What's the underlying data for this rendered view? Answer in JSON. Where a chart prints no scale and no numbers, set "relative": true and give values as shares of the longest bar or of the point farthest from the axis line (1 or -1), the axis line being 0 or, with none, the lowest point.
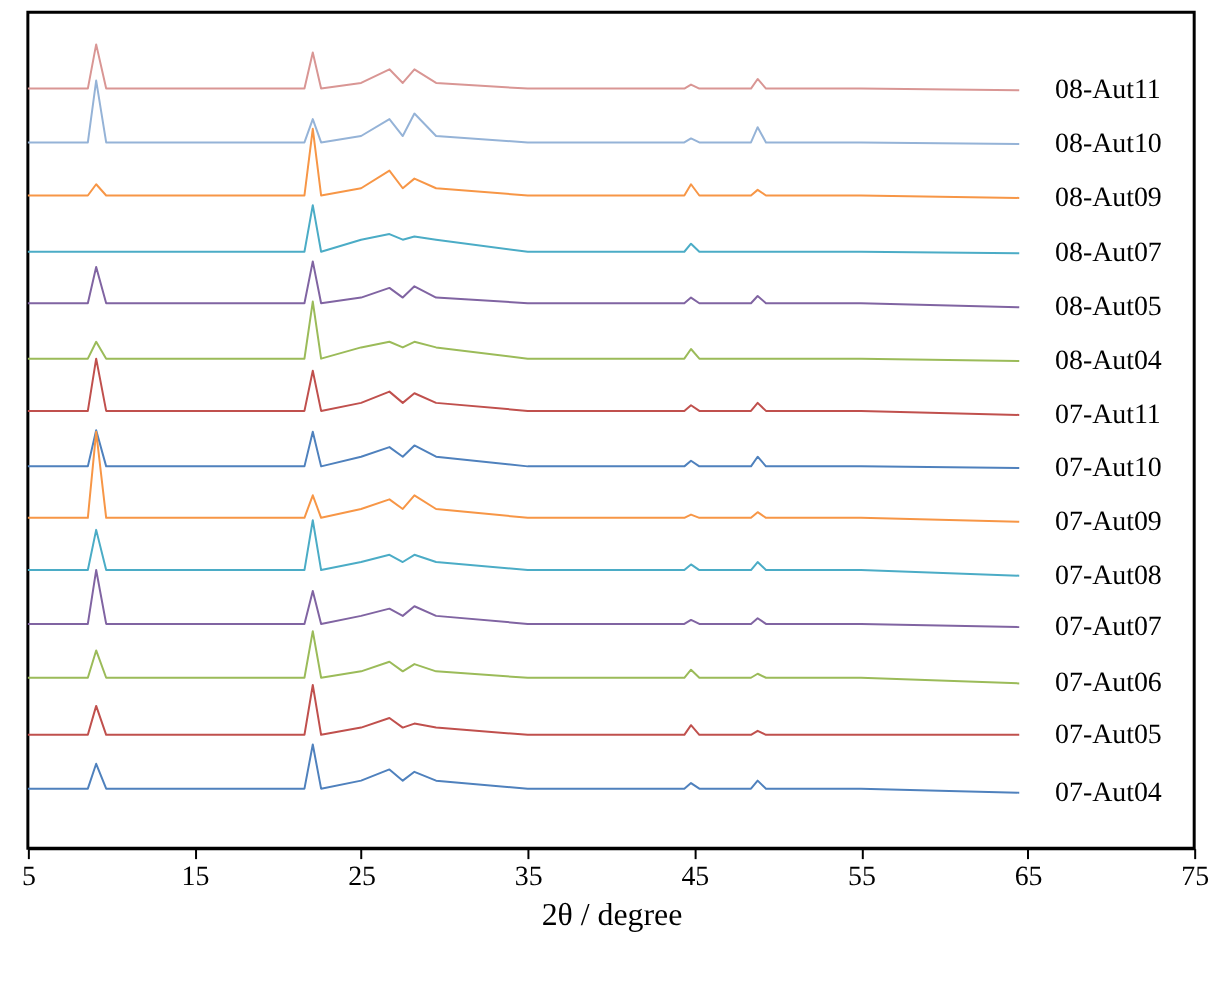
{
  "chart_data": {
    "type": "line",
    "relative": true,
    "xlabel": "2θ / degree",
    "xlim": [
      5,
      75
    ],
    "xticks": [
      5,
      15,
      25,
      35,
      45,
      55,
      65,
      75
    ],
    "grid": false,
    "marker": "none",
    "line_style": "solid",
    "x": [
      5,
      8.6,
      9.1,
      9.7,
      15,
      21.6,
      22.1,
      22.6,
      25,
      26.7,
      27.5,
      28.2,
      29.5,
      35,
      44.4,
      44.8,
      45.3,
      48.4,
      48.8,
      49.3,
      55,
      64.5
    ],
    "series": [
      {
        "name": "08-Aut11",
        "color": "#d99694",
        "values": [
          0.945,
          0.945,
          1.0,
          0.945,
          0.945,
          0.945,
          0.99,
          0.945,
          0.952,
          0.969,
          0.952,
          0.969,
          0.952,
          0.945,
          0.945,
          0.95,
          0.945,
          0.945,
          0.957,
          0.945,
          0.945,
          0.943
        ]
      },
      {
        "name": "08-Aut10",
        "color": "#95b3d7",
        "values": [
          0.878,
          0.878,
          0.955,
          0.878,
          0.878,
          0.878,
          0.907,
          0.878,
          0.886,
          0.907,
          0.886,
          0.914,
          0.886,
          0.878,
          0.878,
          0.883,
          0.878,
          0.878,
          0.897,
          0.878,
          0.878,
          0.876
        ]
      },
      {
        "name": "08-Aut09",
        "color": "#f79646",
        "values": [
          0.812,
          0.812,
          0.826,
          0.812,
          0.812,
          0.812,
          0.895,
          0.812,
          0.821,
          0.843,
          0.821,
          0.833,
          0.821,
          0.812,
          0.812,
          0.826,
          0.812,
          0.812,
          0.819,
          0.812,
          0.812,
          0.809
        ]
      },
      {
        "name": "08-Aut07",
        "color": "#4bacc6",
        "values": [
          0.742,
          0.742,
          0.742,
          0.742,
          0.742,
          0.742,
          0.8,
          0.742,
          0.757,
          0.764,
          0.757,
          0.761,
          0.757,
          0.742,
          0.742,
          0.752,
          0.742,
          0.742,
          0.742,
          0.742,
          0.742,
          0.74
        ]
      },
      {
        "name": "08-Aut05",
        "color": "#8064a2",
        "values": [
          0.678,
          0.678,
          0.723,
          0.678,
          0.678,
          0.678,
          0.73,
          0.678,
          0.685,
          0.697,
          0.685,
          0.699,
          0.685,
          0.678,
          0.678,
          0.685,
          0.678,
          0.678,
          0.687,
          0.678,
          0.678,
          0.673
        ]
      },
      {
        "name": "08-Aut04",
        "color": "#9bbb59",
        "values": [
          0.609,
          0.609,
          0.63,
          0.609,
          0.609,
          0.609,
          0.68,
          0.609,
          0.623,
          0.63,
          0.623,
          0.63,
          0.623,
          0.609,
          0.609,
          0.621,
          0.609,
          0.609,
          0.609,
          0.609,
          0.609,
          0.606
        ]
      },
      {
        "name": "07-Aut11",
        "color": "#c0504d",
        "values": [
          0.544,
          0.544,
          0.609,
          0.544,
          0.544,
          0.544,
          0.594,
          0.544,
          0.554,
          0.568,
          0.554,
          0.566,
          0.554,
          0.544,
          0.544,
          0.551,
          0.544,
          0.544,
          0.554,
          0.544,
          0.544,
          0.539
        ]
      },
      {
        "name": "07-Aut10",
        "color": "#4f81bd",
        "values": [
          0.475,
          0.475,
          0.52,
          0.475,
          0.475,
          0.475,
          0.518,
          0.475,
          0.487,
          0.499,
          0.487,
          0.501,
          0.487,
          0.475,
          0.475,
          0.482,
          0.475,
          0.475,
          0.487,
          0.475,
          0.475,
          0.473
        ]
      },
      {
        "name": "07-Aut09",
        "color": "#f79646",
        "values": [
          0.411,
          0.411,
          0.518,
          0.411,
          0.411,
          0.411,
          0.439,
          0.411,
          0.422,
          0.434,
          0.422,
          0.439,
          0.422,
          0.411,
          0.411,
          0.415,
          0.411,
          0.411,
          0.418,
          0.411,
          0.411,
          0.406
        ]
      },
      {
        "name": "07-Aut08",
        "color": "#4bacc6",
        "values": [
          0.346,
          0.346,
          0.396,
          0.346,
          0.346,
          0.346,
          0.408,
          0.346,
          0.356,
          0.365,
          0.356,
          0.365,
          0.356,
          0.346,
          0.346,
          0.353,
          0.346,
          0.346,
          0.356,
          0.346,
          0.346,
          0.339
        ]
      },
      {
        "name": "07-Aut07",
        "color": "#8064a2",
        "values": [
          0.279,
          0.279,
          0.346,
          0.279,
          0.279,
          0.279,
          0.32,
          0.279,
          0.289,
          0.298,
          0.289,
          0.301,
          0.289,
          0.279,
          0.279,
          0.284,
          0.279,
          0.279,
          0.286,
          0.279,
          0.279,
          0.275
        ]
      },
      {
        "name": "07-Aut06",
        "color": "#9bbb59",
        "values": [
          0.212,
          0.212,
          0.246,
          0.212,
          0.212,
          0.212,
          0.27,
          0.212,
          0.22,
          0.232,
          0.22,
          0.229,
          0.22,
          0.212,
          0.212,
          0.222,
          0.212,
          0.212,
          0.217,
          0.212,
          0.212,
          0.205
        ]
      },
      {
        "name": "07-Aut05",
        "color": "#c0504d",
        "values": [
          0.141,
          0.141,
          0.177,
          0.141,
          0.141,
          0.141,
          0.203,
          0.141,
          0.15,
          0.162,
          0.15,
          0.155,
          0.15,
          0.141,
          0.141,
          0.153,
          0.141,
          0.141,
          0.146,
          0.141,
          0.141,
          0.141
        ]
      },
      {
        "name": "07-Aut04",
        "color": "#4f81bd",
        "values": [
          0.074,
          0.074,
          0.105,
          0.074,
          0.074,
          0.074,
          0.129,
          0.074,
          0.084,
          0.098,
          0.084,
          0.095,
          0.084,
          0.074,
          0.074,
          0.081,
          0.074,
          0.074,
          0.084,
          0.074,
          0.074,
          0.069
        ]
      }
    ]
  }
}
